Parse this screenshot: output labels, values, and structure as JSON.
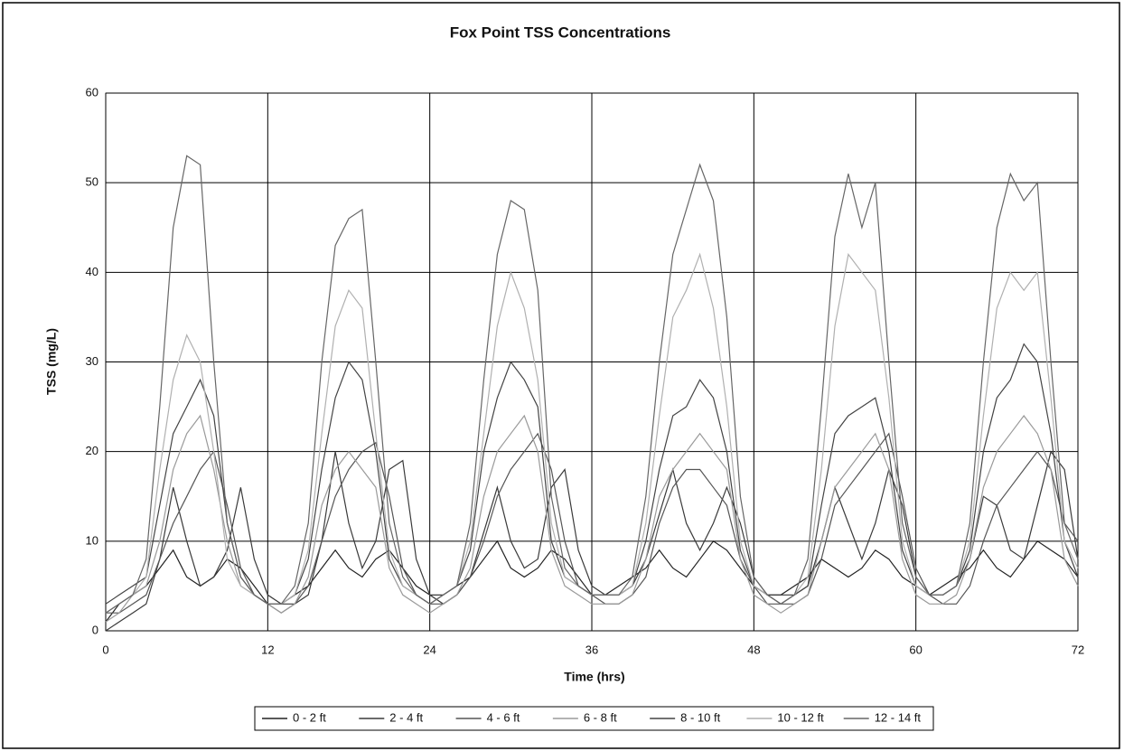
{
  "chart_data": {
    "type": "line",
    "title": "Fox Point TSS Concentrations",
    "x_label": "Time (hrs)",
    "y_label": "TSS (mg/L)",
    "x": [
      0,
      1,
      2,
      3,
      4,
      5,
      6,
      7,
      8,
      9,
      10,
      11,
      12,
      13,
      14,
      15,
      16,
      17,
      18,
      19,
      20,
      21,
      22,
      23,
      24,
      25,
      26,
      27,
      28,
      29,
      30,
      31,
      32,
      33,
      34,
      35,
      36,
      37,
      38,
      39,
      40,
      41,
      42,
      43,
      44,
      45,
      46,
      47,
      48,
      49,
      50,
      51,
      52,
      53,
      54,
      55,
      56,
      57,
      58,
      59,
      60,
      61,
      62,
      63,
      64,
      65,
      66,
      67,
      68,
      69,
      70,
      71,
      72
    ],
    "xlim": [
      0,
      72
    ],
    "xticks": [
      0,
      12,
      24,
      36,
      48,
      60,
      72
    ],
    "ylim": [
      0,
      60
    ],
    "yticks": [
      0,
      10,
      20,
      30,
      40,
      50,
      60
    ],
    "grid": true,
    "legend": "bottom",
    "series": [
      {
        "name": "0 - 2 ft",
        "color": "#222222",
        "values": [
          1,
          3,
          4,
          5,
          7,
          9,
          6,
          5,
          6,
          8,
          7,
          5,
          3,
          3,
          4,
          5,
          7,
          9,
          7,
          6,
          8,
          9,
          7,
          5,
          4,
          4,
          5,
          6,
          8,
          10,
          7,
          6,
          7,
          9,
          8,
          6,
          4,
          4,
          5,
          6,
          7,
          9,
          7,
          6,
          8,
          10,
          9,
          7,
          5,
          4,
          4,
          5,
          6,
          8,
          7,
          6,
          7,
          9,
          8,
          6,
          5,
          4,
          5,
          6,
          7,
          9,
          7,
          6,
          8,
          10,
          9,
          8,
          6
        ]
      },
      {
        "name": "2 - 4 ft",
        "color": "#3a3a3a",
        "values": [
          0,
          1,
          2,
          3,
          8,
          16,
          10,
          5,
          6,
          9,
          16,
          8,
          4,
          3,
          3,
          4,
          10,
          20,
          12,
          7,
          10,
          18,
          19,
          8,
          4,
          3,
          4,
          6,
          11,
          16,
          10,
          7,
          8,
          16,
          18,
          9,
          5,
          4,
          4,
          5,
          8,
          13,
          18,
          12,
          9,
          12,
          16,
          12,
          6,
          4,
          4,
          4,
          5,
          10,
          16,
          12,
          8,
          12,
          18,
          14,
          6,
          4,
          4,
          5,
          8,
          15,
          14,
          9,
          8,
          14,
          20,
          18,
          8
        ]
      },
      {
        "name": "4 - 6 ft",
        "color": "#555555",
        "values": [
          2,
          2,
          3,
          4,
          8,
          12,
          15,
          18,
          20,
          14,
          7,
          4,
          3,
          2,
          3,
          5,
          10,
          15,
          18,
          20,
          21,
          15,
          7,
          4,
          3,
          3,
          4,
          6,
          10,
          15,
          18,
          20,
          22,
          18,
          10,
          5,
          4,
          3,
          3,
          4,
          6,
          12,
          16,
          18,
          18,
          16,
          14,
          8,
          5,
          3,
          3,
          3,
          4,
          8,
          14,
          16,
          18,
          20,
          22,
          15,
          7,
          4,
          3,
          3,
          5,
          10,
          14,
          16,
          18,
          20,
          18,
          12,
          10
        ]
      },
      {
        "name": "6 - 8 ft",
        "color": "#9a9a9a",
        "values": [
          1,
          2,
          4,
          5,
          10,
          18,
          22,
          24,
          18,
          10,
          5,
          4,
          3,
          2,
          3,
          6,
          14,
          18,
          20,
          18,
          16,
          7,
          4,
          3,
          2,
          3,
          4,
          7,
          15,
          20,
          22,
          24,
          20,
          9,
          5,
          4,
          3,
          3,
          3,
          4,
          8,
          15,
          18,
          20,
          22,
          20,
          18,
          8,
          4,
          3,
          2,
          3,
          4,
          10,
          16,
          18,
          20,
          22,
          18,
          8,
          4,
          3,
          3,
          4,
          8,
          16,
          20,
          22,
          24,
          22,
          18,
          8,
          5
        ]
      },
      {
        "name": "8 - 10 ft",
        "color": "#444444",
        "values": [
          3,
          4,
          5,
          6,
          14,
          22,
          25,
          28,
          24,
          12,
          6,
          4,
          3,
          3,
          4,
          8,
          18,
          26,
          30,
          28,
          20,
          8,
          5,
          4,
          3,
          4,
          5,
          9,
          20,
          26,
          30,
          28,
          25,
          10,
          6,
          5,
          4,
          4,
          4,
          5,
          10,
          18,
          24,
          25,
          28,
          26,
          20,
          9,
          5,
          4,
          3,
          4,
          5,
          14,
          22,
          24,
          25,
          26,
          20,
          9,
          5,
          4,
          4,
          5,
          9,
          20,
          26,
          28,
          32,
          30,
          22,
          10,
          6
        ]
      },
      {
        "name": "10 - 12 ft",
        "color": "#b0b0b0",
        "values": [
          2,
          3,
          4,
          6,
          18,
          28,
          33,
          30,
          20,
          8,
          5,
          4,
          3,
          3,
          4,
          9,
          22,
          34,
          38,
          36,
          22,
          9,
          5,
          4,
          3,
          4,
          5,
          10,
          22,
          34,
          40,
          36,
          28,
          12,
          6,
          5,
          4,
          4,
          4,
          5,
          12,
          24,
          35,
          38,
          42,
          36,
          25,
          10,
          5,
          4,
          3,
          4,
          6,
          18,
          34,
          42,
          40,
          38,
          26,
          10,
          5,
          4,
          4,
          5,
          10,
          24,
          36,
          40,
          38,
          40,
          26,
          10,
          7
        ]
      },
      {
        "name": "12 - 14 ft",
        "color": "#666666",
        "values": [
          2,
          3,
          4,
          8,
          25,
          45,
          53,
          52,
          30,
          12,
          6,
          4,
          3,
          3,
          5,
          12,
          30,
          43,
          46,
          47,
          30,
          12,
          6,
          4,
          3,
          4,
          5,
          12,
          28,
          42,
          48,
          47,
          38,
          15,
          7,
          5,
          4,
          4,
          4,
          6,
          15,
          30,
          42,
          47,
          52,
          48,
          35,
          15,
          6,
          4,
          3,
          4,
          8,
          25,
          44,
          51,
          45,
          50,
          30,
          12,
          6,
          4,
          4,
          5,
          12,
          30,
          45,
          51,
          48,
          50,
          30,
          12,
          8
        ]
      }
    ]
  }
}
